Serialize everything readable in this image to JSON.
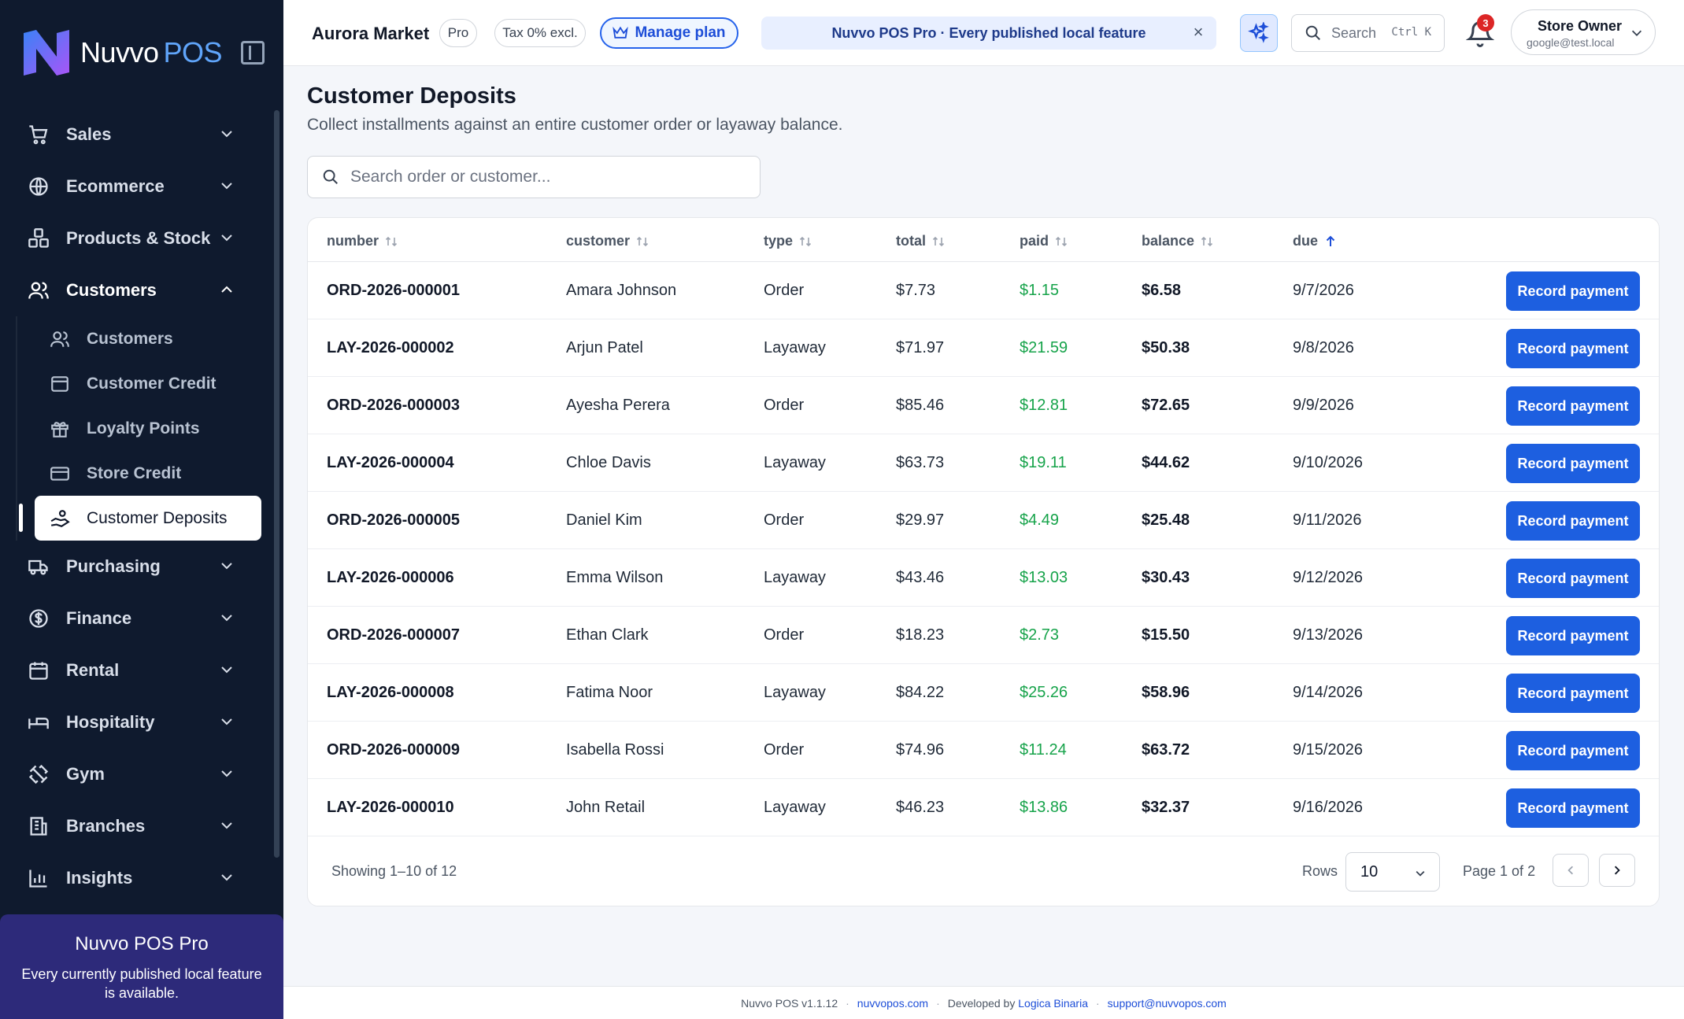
{
  "brand": {
    "name": "Nuvvo",
    "suffix": "POS"
  },
  "sidebar": {
    "items": [
      {
        "label": "Sales",
        "icon": "cart-icon"
      },
      {
        "label": "Ecommerce",
        "icon": "globe-icon"
      },
      {
        "label": "Products & Stock",
        "icon": "boxes-icon"
      },
      {
        "label": "Customers",
        "icon": "users-icon",
        "open": true
      },
      {
        "label": "Purchasing",
        "icon": "truck-icon"
      },
      {
        "label": "Finance",
        "icon": "dollar-icon"
      },
      {
        "label": "Rental",
        "icon": "calendar-icon"
      },
      {
        "label": "Hospitality",
        "icon": "bed-icon"
      },
      {
        "label": "Gym",
        "icon": "dumbbell-icon"
      },
      {
        "label": "Branches",
        "icon": "building-icon"
      },
      {
        "label": "Insights",
        "icon": "chart-icon"
      }
    ],
    "customer_sub": [
      {
        "label": "Customers"
      },
      {
        "label": "Customer Credit"
      },
      {
        "label": "Loyalty Points"
      },
      {
        "label": "Store Credit"
      },
      {
        "label": "Customer Deposits",
        "active": true
      }
    ],
    "promo": {
      "title": "Nuvvo POS Pro",
      "desc": "Every currently published local feature is available."
    }
  },
  "topbar": {
    "store": "Aurora Market",
    "plan_badge": "Pro",
    "tax_badge": "Tax 0% excl.",
    "manage_plan": "Manage plan",
    "banner": "Nuvvo POS Pro · Every published local feature",
    "search_label": "Search",
    "search_kbd": "Ctrl K",
    "notif_count": "3",
    "user_name": "Store Owner",
    "user_email": "google@test.local"
  },
  "page": {
    "title": "Customer Deposits",
    "subtitle": "Collect installments against an entire customer order or layaway balance.",
    "search_placeholder": "Search order or customer..."
  },
  "table": {
    "columns": [
      "number",
      "customer",
      "type",
      "total",
      "paid",
      "balance",
      "due"
    ],
    "sort_column": "due",
    "action_label": "Record payment",
    "rows": [
      {
        "number": "ORD-2026-000001",
        "customer": "Amara Johnson",
        "type": "Order",
        "total": "$7.73",
        "paid": "$1.15",
        "balance": "$6.58",
        "due": "9/7/2026"
      },
      {
        "number": "LAY-2026-000002",
        "customer": "Arjun Patel",
        "type": "Layaway",
        "total": "$71.97",
        "paid": "$21.59",
        "balance": "$50.38",
        "due": "9/8/2026"
      },
      {
        "number": "ORD-2026-000003",
        "customer": "Ayesha Perera",
        "type": "Order",
        "total": "$85.46",
        "paid": "$12.81",
        "balance": "$72.65",
        "due": "9/9/2026"
      },
      {
        "number": "LAY-2026-000004",
        "customer": "Chloe Davis",
        "type": "Layaway",
        "total": "$63.73",
        "paid": "$19.11",
        "balance": "$44.62",
        "due": "9/10/2026"
      },
      {
        "number": "ORD-2026-000005",
        "customer": "Daniel Kim",
        "type": "Order",
        "total": "$29.97",
        "paid": "$4.49",
        "balance": "$25.48",
        "due": "9/11/2026"
      },
      {
        "number": "LAY-2026-000006",
        "customer": "Emma Wilson",
        "type": "Layaway",
        "total": "$43.46",
        "paid": "$13.03",
        "balance": "$30.43",
        "due": "9/12/2026"
      },
      {
        "number": "ORD-2026-000007",
        "customer": "Ethan Clark",
        "type": "Order",
        "total": "$18.23",
        "paid": "$2.73",
        "balance": "$15.50",
        "due": "9/13/2026"
      },
      {
        "number": "LAY-2026-000008",
        "customer": "Fatima Noor",
        "type": "Layaway",
        "total": "$84.22",
        "paid": "$25.26",
        "balance": "$58.96",
        "due": "9/14/2026"
      },
      {
        "number": "ORD-2026-000009",
        "customer": "Isabella Rossi",
        "type": "Order",
        "total": "$74.96",
        "paid": "$11.24",
        "balance": "$63.72",
        "due": "9/15/2026"
      },
      {
        "number": "LAY-2026-000010",
        "customer": "John Retail",
        "type": "Layaway",
        "total": "$46.23",
        "paid": "$13.86",
        "balance": "$32.37",
        "due": "9/16/2026"
      }
    ]
  },
  "pagination": {
    "showing": "Showing 1–10 of 12",
    "rows_label": "Rows",
    "rows_value": "10",
    "page_label": "Page 1 of 2"
  },
  "footer": {
    "version": "Nuvvo POS v1.1.12",
    "site": "nuvvopos.com",
    "dev_prefix": "Developed by",
    "dev": "Logica Binaria",
    "support": "support@nuvvopos.com"
  },
  "colors": {
    "sidebar_bg": "#0f1a2e",
    "accent": "#1d5fe0",
    "paid": "#16a34a",
    "promo_bg": "#2d2a7a"
  }
}
